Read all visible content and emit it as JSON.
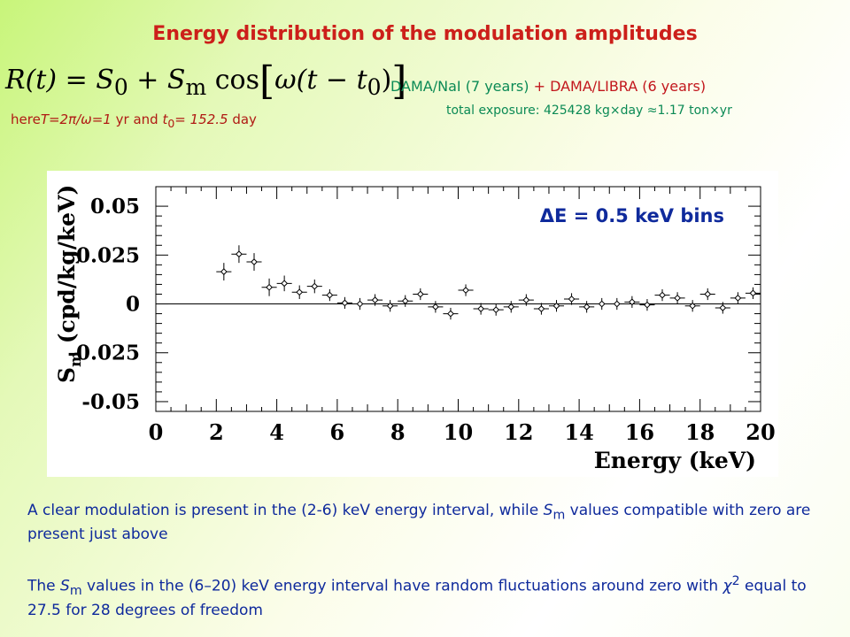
{
  "slide": {
    "title": "Energy distribution of the modulation amplitudes",
    "formula_lhs": "R(t) = S",
    "formula_sub0": "0",
    "formula_mid": " + S",
    "formula_subm": "m",
    "formula_rhs": " cos",
    "formula_inner": "ω(t − t",
    "formula_inner_sub": "0",
    "formula_close": ")",
    "period_text": {
      "lead": "here",
      "T": "T=2",
      "pi_over_omega": "π/ω=1",
      "yr_and": " yr and ",
      "t0": "t",
      "t0_sub": "0",
      "t0_val": "= 152.5",
      "day": " day"
    },
    "dama_nai": "DAMA/NaI (7 years)",
    "plus": " + ",
    "dama_libra": "DAMA/LIBRA (6 years)",
    "exposure": "total exposure: 425428 kg×day ≈1.17 ton×yr",
    "para1": {
      "a": "A clear modulation is present in the (2-6) keV energy interval, while ",
      "S": "S",
      "sub": "m",
      "b": " values compatible with zero are present just above"
    },
    "para2": {
      "a": "The ",
      "S": "S",
      "sub": "m",
      "b": " values in the (6–20) keV energy interval have random fluctuations around zero with ",
      "chi": "χ",
      "sup": "2",
      "c": " equal to 27.5 for 28 degrees of freedom"
    }
  },
  "chart_data": {
    "type": "scatter",
    "annotation": "ΔE = 0.5 keV bins",
    "xlabel": "Energy (keV)",
    "ylabel_main": "S",
    "ylabel_sub": "m",
    "ylabel_rest": " (cpd/kg/keV)",
    "xlim": [
      0,
      20
    ],
    "ylim": [
      -0.055,
      0.06
    ],
    "xticks": [
      "0",
      "2",
      "4",
      "6",
      "8",
      "10",
      "12",
      "14",
      "16",
      "18",
      "20"
    ],
    "yticks": [
      "0.05",
      "0.025",
      "0",
      "-0.025",
      "-0.05"
    ],
    "zero_line": true,
    "xerr": 0.25,
    "points": [
      {
        "x": 2.25,
        "y": 0.0165,
        "err": 0.0045
      },
      {
        "x": 2.75,
        "y": 0.0255,
        "err": 0.0045
      },
      {
        "x": 3.25,
        "y": 0.0215,
        "err": 0.0045
      },
      {
        "x": 3.75,
        "y": 0.0085,
        "err": 0.0045
      },
      {
        "x": 4.25,
        "y": 0.0105,
        "err": 0.004
      },
      {
        "x": 4.75,
        "y": 0.006,
        "err": 0.0035
      },
      {
        "x": 5.25,
        "y": 0.009,
        "err": 0.0035
      },
      {
        "x": 5.75,
        "y": 0.0045,
        "err": 0.003
      },
      {
        "x": 6.25,
        "y": 0.0005,
        "err": 0.003
      },
      {
        "x": 6.75,
        "y": 0.0,
        "err": 0.003
      },
      {
        "x": 7.25,
        "y": 0.002,
        "err": 0.003
      },
      {
        "x": 7.75,
        "y": -0.001,
        "err": 0.003
      },
      {
        "x": 8.25,
        "y": 0.0015,
        "err": 0.003
      },
      {
        "x": 8.75,
        "y": 0.005,
        "err": 0.003
      },
      {
        "x": 9.25,
        "y": -0.0015,
        "err": 0.003
      },
      {
        "x": 9.75,
        "y": -0.005,
        "err": 0.003
      },
      {
        "x": 10.25,
        "y": 0.007,
        "err": 0.003
      },
      {
        "x": 10.75,
        "y": -0.0025,
        "err": 0.003
      },
      {
        "x": 11.25,
        "y": -0.003,
        "err": 0.003
      },
      {
        "x": 11.75,
        "y": -0.0015,
        "err": 0.003
      },
      {
        "x": 12.25,
        "y": 0.002,
        "err": 0.003
      },
      {
        "x": 12.75,
        "y": -0.0025,
        "err": 0.003
      },
      {
        "x": 13.25,
        "y": -0.001,
        "err": 0.003
      },
      {
        "x": 13.75,
        "y": 0.0025,
        "err": 0.003
      },
      {
        "x": 14.25,
        "y": -0.0015,
        "err": 0.003
      },
      {
        "x": 14.75,
        "y": 0.0,
        "err": 0.003
      },
      {
        "x": 15.25,
        "y": 0.0,
        "err": 0.003
      },
      {
        "x": 15.75,
        "y": 0.001,
        "err": 0.003
      },
      {
        "x": 16.25,
        "y": -0.0005,
        "err": 0.003
      },
      {
        "x": 16.75,
        "y": 0.0045,
        "err": 0.003
      },
      {
        "x": 17.25,
        "y": 0.003,
        "err": 0.003
      },
      {
        "x": 17.75,
        "y": -0.001,
        "err": 0.003
      },
      {
        "x": 18.25,
        "y": 0.005,
        "err": 0.003
      },
      {
        "x": 18.75,
        "y": -0.002,
        "err": 0.003
      },
      {
        "x": 19.25,
        "y": 0.003,
        "err": 0.003
      },
      {
        "x": 19.75,
        "y": 0.0055,
        "err": 0.003
      }
    ]
  }
}
